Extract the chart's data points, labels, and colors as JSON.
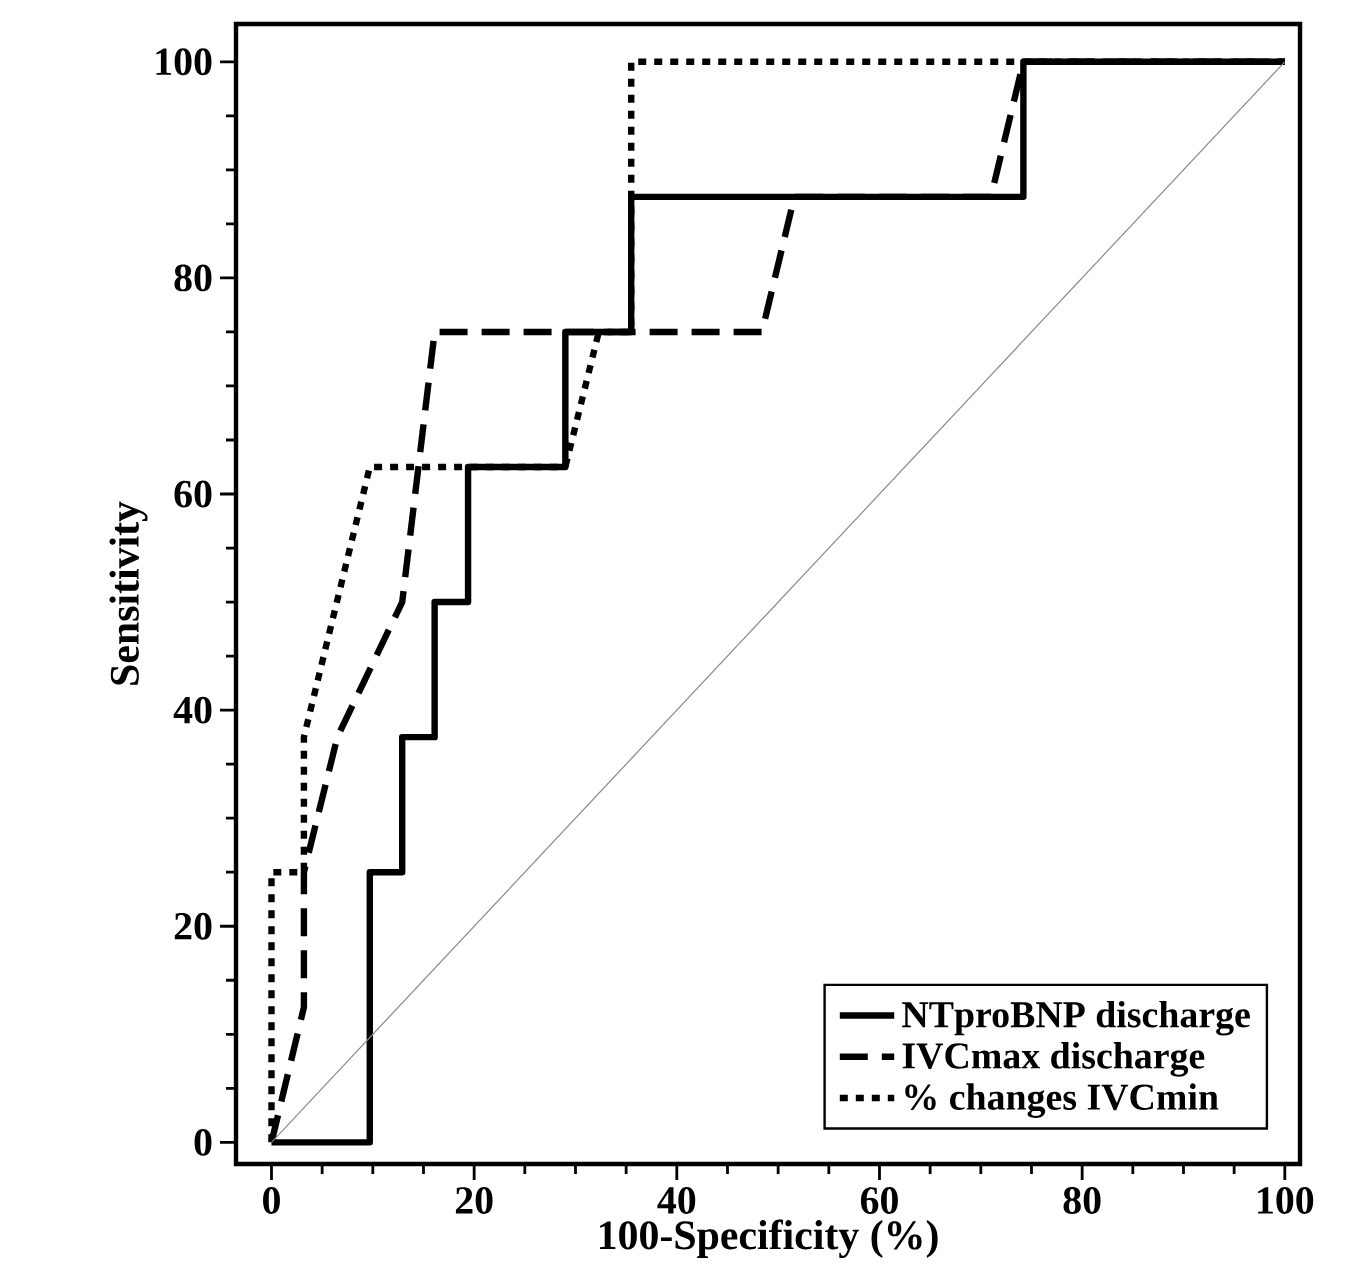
{
  "chart_data": {
    "type": "line",
    "xlabel": "100-Specificity (%)",
    "ylabel": "Sensitivity",
    "xlim": [
      -3.5,
      101.5
    ],
    "ylim": [
      -2,
      103.5
    ],
    "xticks": [
      0,
      20,
      40,
      60,
      80,
      100
    ],
    "yticks": [
      0,
      20,
      40,
      60,
      80,
      100
    ],
    "legend": "bottom right",
    "grid": false,
    "marker": "none",
    "series": [
      {
        "name": "NTproBNP discharge",
        "color": "#000000",
        "line_style": "solid",
        "x": [
          0,
          9.7,
          9.7,
          12.9,
          12.9,
          16.1,
          16.1,
          19.4,
          19.4,
          29,
          29,
          35.5,
          35.5,
          74.2,
          74.2,
          100
        ],
        "values": [
          0,
          0,
          25,
          25,
          37.5,
          37.5,
          50,
          50,
          62.5,
          62.5,
          75,
          75,
          87.5,
          87.5,
          100,
          100
        ]
      },
      {
        "name": "IVCmax discharge",
        "color": "#000000",
        "line_style": "dashed",
        "x": [
          0,
          3.2,
          3.2,
          6.5,
          12.9,
          16.1,
          48.4,
          51.6,
          71,
          74.2,
          100
        ],
        "values": [
          0,
          12.5,
          25,
          37.5,
          50,
          75,
          75,
          87.5,
          87.5,
          100,
          100
        ]
      },
      {
        "name": "% changes IVCmin",
        "color": "#000000",
        "line_style": "dotted",
        "x": [
          0,
          0,
          3.2,
          3.2,
          9.7,
          29,
          32.3,
          35.5,
          35.5,
          100
        ],
        "values": [
          0,
          25,
          25,
          37.5,
          62.5,
          62.5,
          75,
          75,
          100,
          100
        ]
      },
      {
        "color": "#888888",
        "line_style": "solid",
        "x": [
          0,
          100
        ],
        "values": [
          0,
          100
        ]
      }
    ]
  }
}
